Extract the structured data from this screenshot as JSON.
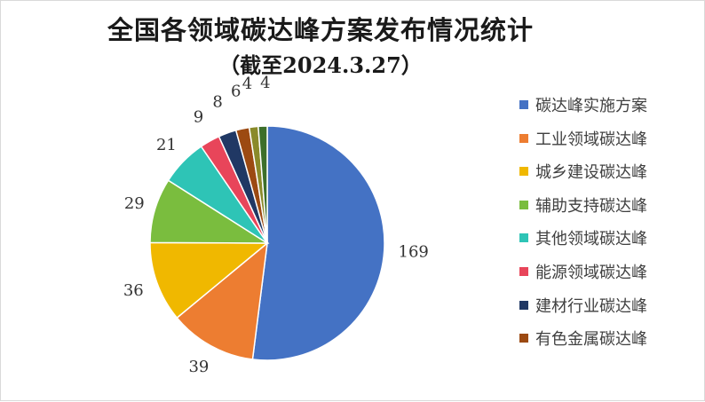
{
  "title": "全国各领域碳达峰方案发布情况统计",
  "subtitle": "（截至2024.3.27）",
  "chart_data": {
    "type": "pie",
    "title": "全国各领域碳达峰方案发布情况统计",
    "subtitle": "（截至2024.3.27）",
    "start_angle": "12 o'clock, clockwise",
    "legend_position": "right",
    "categories": [
      "碳达峰实施方案",
      "工业领域碳达峰",
      "城乡建设碳达峰",
      "辅助支持碳达峰",
      "其他领域碳达峰",
      "能源领域碳达峰",
      "建材行业碳达峰",
      "有色金属碳达峰",
      "",
      ""
    ],
    "values": [
      169,
      39,
      36,
      29,
      21,
      9,
      8,
      6,
      4,
      4
    ],
    "labels": [
      "169",
      "39",
      "36",
      "29",
      "21",
      "9",
      "8",
      "6",
      "4",
      "4"
    ],
    "colors": [
      "#4472c4",
      "#ed7d31",
      "#f0b800",
      "#7abd3e",
      "#2ec4b6",
      "#e8455a",
      "#203864",
      "#9c4a12",
      "#8a8a2a",
      "#3d6f2a"
    ],
    "legend_count": 8
  }
}
